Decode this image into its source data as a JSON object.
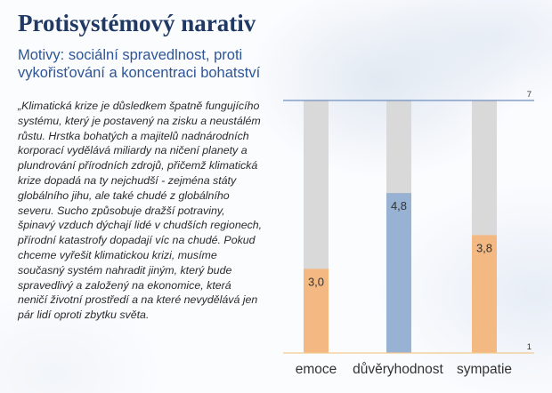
{
  "title": "Protisystémový narativ",
  "subtitle": "Motivy: sociální spravedlnost, proti vykořisťování a koncentraci bohatství",
  "quote": "„Klimatická krize je důsledkem špatně fungujícího systému, který je postavený na zisku a neustálém růstu. Hrstka bohatých a majitelů nadnárodních korporací vydělává miliardy na ničení planety a plundrování přírodních zdrojů, přičemž klimatická krize dopadá na ty nejchudší - zejména státy globálního jihu, ale také chudé z globálního severu. Sucho způsobuje dražší potraviny, špinavý vzduch dýchají lidé v chudších regionech, přírodní katastrofy dopadají víc na chudé. Pokud chceme vyřešit klimatickou krizi, musíme současný systém nahradit jiným, který bude spravedlivý a založený na ekonomice, která neničí životní prostředí a na které nevydělává jen pár lidí oproti zbytku světa.",
  "chart_data": {
    "type": "bar",
    "categories": [
      "emoce",
      "důvěryhodnost",
      "sympatie"
    ],
    "values": [
      3.0,
      4.8,
      3.8
    ],
    "value_labels": [
      "3,0",
      "4,8",
      "3,8"
    ],
    "ylim": [
      1,
      7
    ],
    "ytick_labels": [
      "1",
      "7"
    ],
    "bar_colors": [
      "#f4b983",
      "#97b2d3",
      "#f4b983"
    ],
    "track_color": "#d9d9d9",
    "top_line_color": "#6f8fbe",
    "baseline_color": "#f3c98f",
    "grid": false,
    "legend": "none"
  }
}
